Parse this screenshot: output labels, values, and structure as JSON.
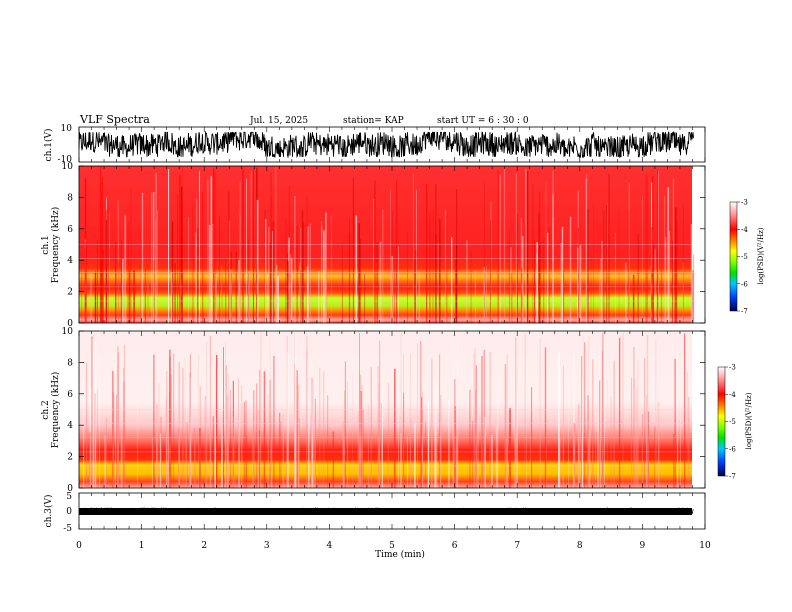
{
  "chart_data": {
    "type": "heatmap",
    "title": "VLF Spectra",
    "date": "Jul. 15, 2025",
    "station": "station= KAP",
    "start": "start  UT =  6 : 30 : 0",
    "xlabel": "Time (min)",
    "xlim": [
      0,
      10
    ],
    "xticks": [
      "0",
      "1",
      "2",
      "3",
      "4",
      "5",
      "6",
      "7",
      "8",
      "9",
      "10"
    ],
    "data_end_min": 9.82,
    "panels": [
      {
        "id": "ch1_wave",
        "type": "line",
        "ylabel": "ch.1(V)",
        "ylim": [
          -10,
          10
        ],
        "yticks": [
          "10",
          "-10"
        ],
        "approx_amplitude_V": [
          -7,
          7
        ]
      },
      {
        "id": "ch1_spec",
        "type": "heatmap",
        "ylabel_top": "ch.1",
        "ylabel": "Frequency (kHz)",
        "ylim": [
          0,
          10
        ],
        "yticks": [
          "0",
          "2",
          "4",
          "6",
          "8",
          "10"
        ],
        "bands_khz": [
          {
            "from": 0,
            "to": 0.3,
            "level": "-3.4"
          },
          {
            "from": 0.3,
            "to": 0.6,
            "level": "-3.6"
          },
          {
            "from": 0.6,
            "to": 1.0,
            "level": "-3.9"
          },
          {
            "from": 1.0,
            "to": 1.6,
            "level": "-4.6"
          },
          {
            "from": 1.6,
            "to": 1.9,
            "level": "-5.0"
          },
          {
            "from": 1.9,
            "to": 2.3,
            "level": "-3.8"
          },
          {
            "from": 2.3,
            "to": 3.8,
            "level": "-4.0"
          },
          {
            "from": 3.8,
            "to": 10,
            "level": "-3.5"
          }
        ]
      },
      {
        "id": "ch2_spec",
        "type": "heatmap",
        "ylabel_top": "ch.2",
        "ylabel": "Frequency (kHz)",
        "ylim": [
          0,
          10
        ],
        "yticks": [
          "0",
          "2",
          "4",
          "6",
          "8",
          "10"
        ],
        "bands_khz": [
          {
            "from": 0,
            "to": 0.8,
            "level": "-3.6"
          },
          {
            "from": 0.8,
            "to": 1.8,
            "level": "-4.3"
          },
          {
            "from": 1.8,
            "to": 2.5,
            "level": "-3.8"
          },
          {
            "from": 2.5,
            "to": 3.5,
            "level": "-4.0"
          },
          {
            "from": 3.5,
            "to": 10,
            "level": "-3.05"
          }
        ]
      },
      {
        "id": "ch3_wave",
        "type": "line",
        "ylabel": "ch.3(V)",
        "ylim": [
          -5,
          5
        ],
        "yticks": [
          "5",
          "0",
          "-5"
        ],
        "approx_amplitude_V": [
          -0.8,
          0.8
        ]
      }
    ],
    "colorbar": {
      "label": "log(PSD)(V²/Hz)",
      "range": [
        -7,
        -3
      ],
      "ticks": [
        "-3",
        "-4",
        "-5",
        "-6",
        "-7"
      ]
    }
  }
}
